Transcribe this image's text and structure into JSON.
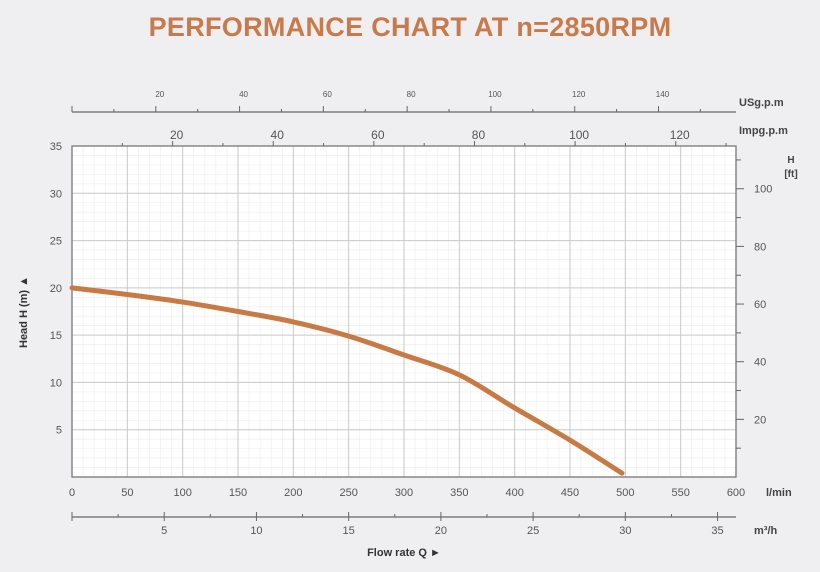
{
  "chart_data": {
    "type": "line",
    "title": "PERFORMANCE CHART AT n=2850RPM",
    "xlabel": "Flow rate Q ►",
    "ylabel": "Head H (m) ▲",
    "x_unit": "l/min",
    "xlim": [
      0,
      600
    ],
    "ylim": [
      0,
      35
    ],
    "x_ticks": [
      0,
      50,
      100,
      150,
      200,
      250,
      300,
      350,
      400,
      450,
      500,
      550,
      600
    ],
    "y_ticks": [
      5,
      10,
      15,
      20,
      25,
      30,
      35
    ],
    "grid": true,
    "series": [
      {
        "x": [
          0,
          50,
          100,
          150,
          200,
          250,
          300,
          350,
          400,
          450,
          497
        ],
        "y": [
          20.0,
          19.3,
          18.5,
          17.5,
          16.4,
          14.9,
          12.9,
          10.8,
          7.3,
          3.9,
          0.4
        ],
        "color": "#c87a45"
      }
    ],
    "secondary_axes": {
      "usgpm": {
        "unit": "USg.p.m",
        "ticks": [
          20,
          40,
          60,
          80,
          100,
          120,
          140
        ]
      },
      "impgpm": {
        "unit": "Impg.p.m",
        "ticks": [
          20,
          40,
          60,
          80,
          100,
          120
        ]
      },
      "m3h": {
        "unit": "m³/h",
        "ticks": [
          5,
          10,
          15,
          20,
          25,
          30,
          35
        ]
      },
      "head_ft": {
        "unit_line1": "H",
        "unit_line2": "[ft]",
        "ticks": [
          20,
          40,
          60,
          80,
          100
        ]
      }
    }
  },
  "colors": {
    "title": "#c97a4b",
    "curve": "#c87a45",
    "grid": "#c9c9cc",
    "background": "#efeff1",
    "plot_bg": "#ffffff"
  }
}
